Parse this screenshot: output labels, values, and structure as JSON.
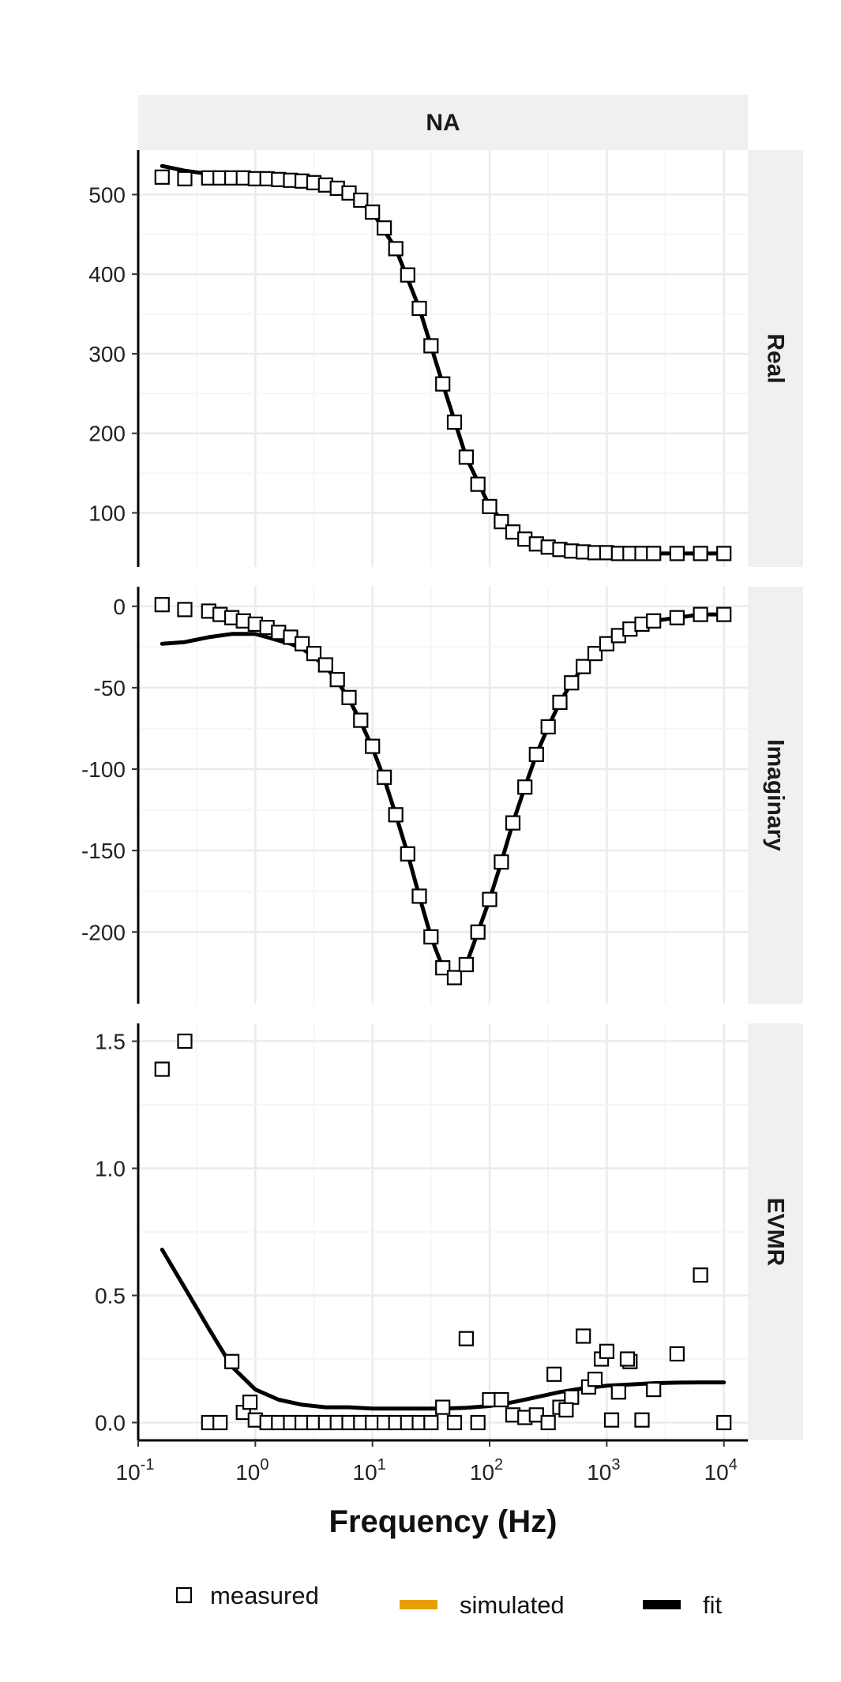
{
  "chart_data": {
    "type": "scatter",
    "facet_title": "NA",
    "xlabel": "Frequency (Hz)",
    "x_scale": "log10",
    "xlim": [
      0.1,
      16000
    ],
    "x_ticks": [
      {
        "value": 0.1,
        "base": "10",
        "exp": "-1"
      },
      {
        "value": 1,
        "base": "10",
        "exp": "0"
      },
      {
        "value": 10,
        "base": "10",
        "exp": "1"
      },
      {
        "value": 100,
        "base": "10",
        "exp": "2"
      },
      {
        "value": 1000,
        "base": "10",
        "exp": "3"
      },
      {
        "value": 10000,
        "base": "10",
        "exp": "4"
      }
    ],
    "grid": true,
    "legend_position": "bottom",
    "legend": [
      {
        "label": "measured",
        "kind": "square",
        "color": "#000000"
      },
      {
        "label": "simulated",
        "kind": "line",
        "color": "#E69F00"
      },
      {
        "label": "fit",
        "kind": "line",
        "color": "#000000"
      }
    ],
    "panels": [
      {
        "label": "Real",
        "ylim": [
          32,
          556
        ],
        "y_ticks": [
          100,
          200,
          300,
          400,
          500
        ],
        "y_tick_labels": [
          "100",
          "200",
          "300",
          "400",
          "500"
        ],
        "measured": {
          "x": [
            0.16,
            0.25,
            0.4,
            0.5,
            0.63,
            0.79,
            1,
            1.26,
            1.58,
            2,
            2.51,
            3.16,
            3.98,
            5.01,
            6.31,
            7.94,
            10,
            12.6,
            15.8,
            20,
            25.1,
            31.6,
            39.8,
            50.1,
            63.1,
            79.4,
            100,
            126,
            158,
            200,
            251,
            316,
            398,
            501,
            631,
            794,
            1000,
            1260,
            1580,
            2000,
            2510,
            3980,
            6310,
            10000
          ],
          "y": [
            522,
            520,
            521,
            521,
            521,
            521,
            520,
            520,
            519,
            518,
            517,
            515,
            512,
            508,
            502,
            493,
            478,
            458,
            432,
            399,
            357,
            310,
            262,
            214,
            170,
            136,
            108,
            89,
            76,
            67,
            61,
            57,
            54,
            52,
            51,
            50,
            50,
            49,
            49,
            49,
            49,
            49,
            49,
            49
          ]
        },
        "fit": {
          "x": [
            0.16,
            0.25,
            0.4,
            0.63,
            1,
            1.58,
            2.51,
            3.98,
            6.31,
            10,
            15.8,
            25.1,
            39.8,
            63.1,
            100,
            158,
            251,
            398,
            631,
            1000,
            1580,
            2510,
            3980,
            6310,
            10000
          ],
          "y": [
            536,
            530,
            526,
            523,
            521,
            519,
            517,
            512,
            502,
            478,
            432,
            357,
            262,
            170,
            108,
            76,
            61,
            54,
            51,
            50,
            49,
            49,
            49,
            49,
            49
          ]
        }
      },
      {
        "label": "Imaginary",
        "ylim": [
          -244,
          12
        ],
        "y_ticks": [
          0,
          -50,
          -100,
          -150,
          -200
        ],
        "y_tick_labels": [
          "0",
          "-50",
          "-100",
          "-150",
          "-200"
        ],
        "measured": {
          "x": [
            0.16,
            0.25,
            0.4,
            0.5,
            0.63,
            0.79,
            1,
            1.26,
            1.58,
            2,
            2.51,
            3.16,
            3.98,
            5.01,
            6.31,
            7.94,
            10,
            12.6,
            15.8,
            20,
            25.1,
            31.6,
            39.8,
            50.1,
            63.1,
            79.4,
            100,
            126,
            158,
            200,
            251,
            316,
            398,
            501,
            631,
            794,
            1000,
            1260,
            1580,
            2000,
            2510,
            3980,
            6310,
            10000
          ],
          "y": [
            1,
            -2,
            -3,
            -5,
            -7,
            -9,
            -11,
            -13,
            -16,
            -19,
            -23,
            -29,
            -36,
            -45,
            -56,
            -70,
            -86,
            -105,
            -128,
            -152,
            -178,
            -203,
            -222,
            -228,
            -220,
            -200,
            -180,
            -157,
            -133,
            -111,
            -91,
            -74,
            -59,
            -47,
            -37,
            -29,
            -23,
            -18,
            -14,
            -11,
            -9,
            -7,
            -5,
            -5
          ]
        },
        "fit": {
          "x": [
            0.16,
            0.25,
            0.4,
            0.63,
            1,
            1.26,
            1.58,
            2,
            2.51,
            3.16,
            3.98,
            5.01,
            6.31,
            7.94,
            10,
            12.6,
            15.8,
            20,
            25.1,
            31.6,
            39.8,
            50.1,
            63.1,
            79.4,
            100,
            126,
            158,
            200,
            251,
            316,
            398,
            501,
            631,
            794,
            1000,
            1260,
            1580,
            2000,
            2510,
            3980,
            6310,
            10000
          ],
          "y": [
            -23,
            -22,
            -19,
            -17,
            -17,
            -19,
            -21,
            -23,
            -26,
            -31,
            -37,
            -46,
            -57,
            -71,
            -87,
            -106,
            -128,
            -152,
            -178,
            -203,
            -222,
            -228,
            -220,
            -200,
            -180,
            -157,
            -133,
            -111,
            -91,
            -74,
            -59,
            -47,
            -37,
            -29,
            -23,
            -18,
            -14,
            -11,
            -9,
            -7,
            -5,
            -5
          ]
        }
      },
      {
        "label": "EVMR",
        "ylim": [
          -0.07,
          1.57
        ],
        "y_ticks": [
          0,
          0.5,
          1,
          1.5
        ],
        "y_tick_labels": [
          "0.0",
          "0.5",
          "1.0",
          "1.5"
        ],
        "measured": {
          "x": [
            0.16,
            0.25,
            0.4,
            0.5,
            0.63,
            0.79,
            1,
            0.9,
            1.26,
            1.58,
            2,
            2.51,
            3.16,
            3.98,
            5.01,
            6.31,
            7.94,
            10,
            12.6,
            15.8,
            20,
            25.1,
            31.6,
            39.8,
            50.1,
            63.1,
            79.4,
            100,
            126,
            158,
            200,
            251,
            316,
            355,
            398,
            501,
            631,
            700,
            794,
            900,
            1000,
            1260,
            1580,
            2000,
            2510,
            3980,
            6310,
            10000,
            450,
            1100,
            1500
          ],
          "y": [
            1.39,
            1.5,
            0.0,
            0.0,
            0.24,
            0.04,
            0.01,
            0.08,
            0.0,
            0.0,
            0.0,
            0.0,
            0.0,
            0.0,
            0.0,
            0.0,
            0.0,
            0.0,
            0.0,
            0.0,
            0.0,
            0.0,
            0.0,
            0.06,
            0.0,
            0.33,
            0.0,
            0.09,
            0.09,
            0.03,
            0.02,
            0.03,
            0.0,
            0.19,
            0.06,
            0.1,
            0.34,
            0.14,
            0.17,
            0.25,
            0.28,
            0.12,
            0.24,
            0.01,
            0.13,
            0.27,
            0.58,
            0.0,
            0.05,
            0.01,
            0.25
          ]
        },
        "fit": {
          "x": [
            0.16,
            0.25,
            0.4,
            0.63,
            1,
            1.58,
            2.51,
            3.98,
            6.31,
            10,
            15.8,
            25.1,
            39.8,
            63.1,
            100,
            158,
            251,
            398,
            631,
            1000,
            1580,
            2510,
            3980,
            6310,
            10000
          ],
          "y": [
            0.68,
            0.53,
            0.37,
            0.22,
            0.13,
            0.09,
            0.07,
            0.06,
            0.06,
            0.055,
            0.055,
            0.055,
            0.055,
            0.058,
            0.065,
            0.08,
            0.1,
            0.12,
            0.135,
            0.145,
            0.15,
            0.155,
            0.157,
            0.158,
            0.158
          ]
        }
      }
    ]
  }
}
